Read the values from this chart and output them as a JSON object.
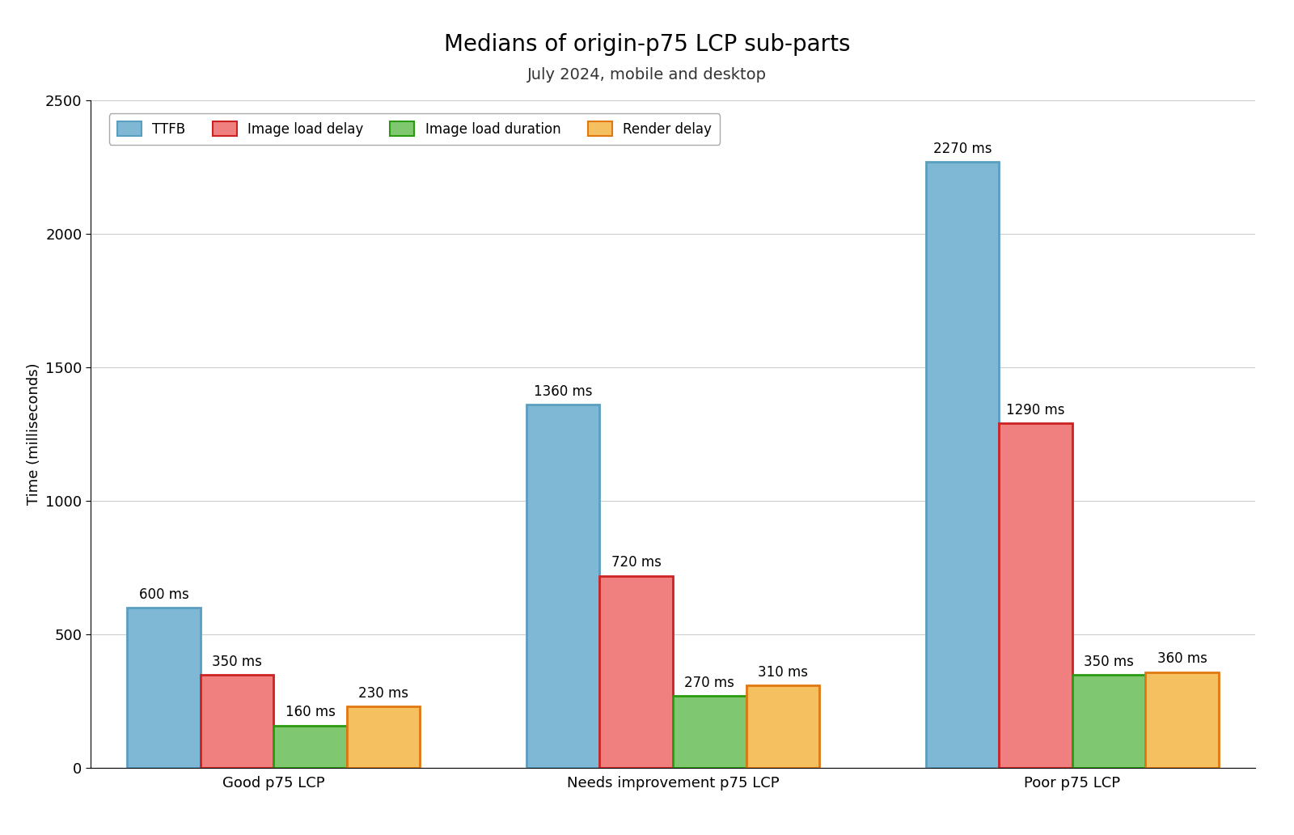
{
  "title": "Medians of origin-p75 LCP sub-parts",
  "subtitle": "July 2024, mobile and desktop",
  "categories": [
    "Good p75 LCP",
    "Needs improvement p75 LCP",
    "Poor p75 LCP"
  ],
  "series": [
    {
      "label": "TTFB",
      "color": "#7eb8d4",
      "edge_color": "#5a9ec0",
      "values": [
        600,
        1360,
        2270
      ]
    },
    {
      "label": "Image load delay",
      "color": "#f08080",
      "edge_color": "#cc2222",
      "values": [
        350,
        720,
        1290
      ]
    },
    {
      "label": "Image load duration",
      "color": "#80c870",
      "edge_color": "#2a9a10",
      "values": [
        160,
        270,
        350
      ]
    },
    {
      "label": "Render delay",
      "color": "#f5c060",
      "edge_color": "#e07810",
      "values": [
        230,
        310,
        360
      ]
    }
  ],
  "ylabel": "Time (milliseconds)",
  "ylim": [
    0,
    2500
  ],
  "yticks": [
    0,
    500,
    1000,
    1500,
    2000,
    2500
  ],
  "bar_width": 0.22,
  "background_color": "#ffffff",
  "title_fontsize": 20,
  "subtitle_fontsize": 14,
  "label_fontsize": 13,
  "tick_fontsize": 13,
  "annotation_fontsize": 12,
  "legend_fontsize": 12
}
